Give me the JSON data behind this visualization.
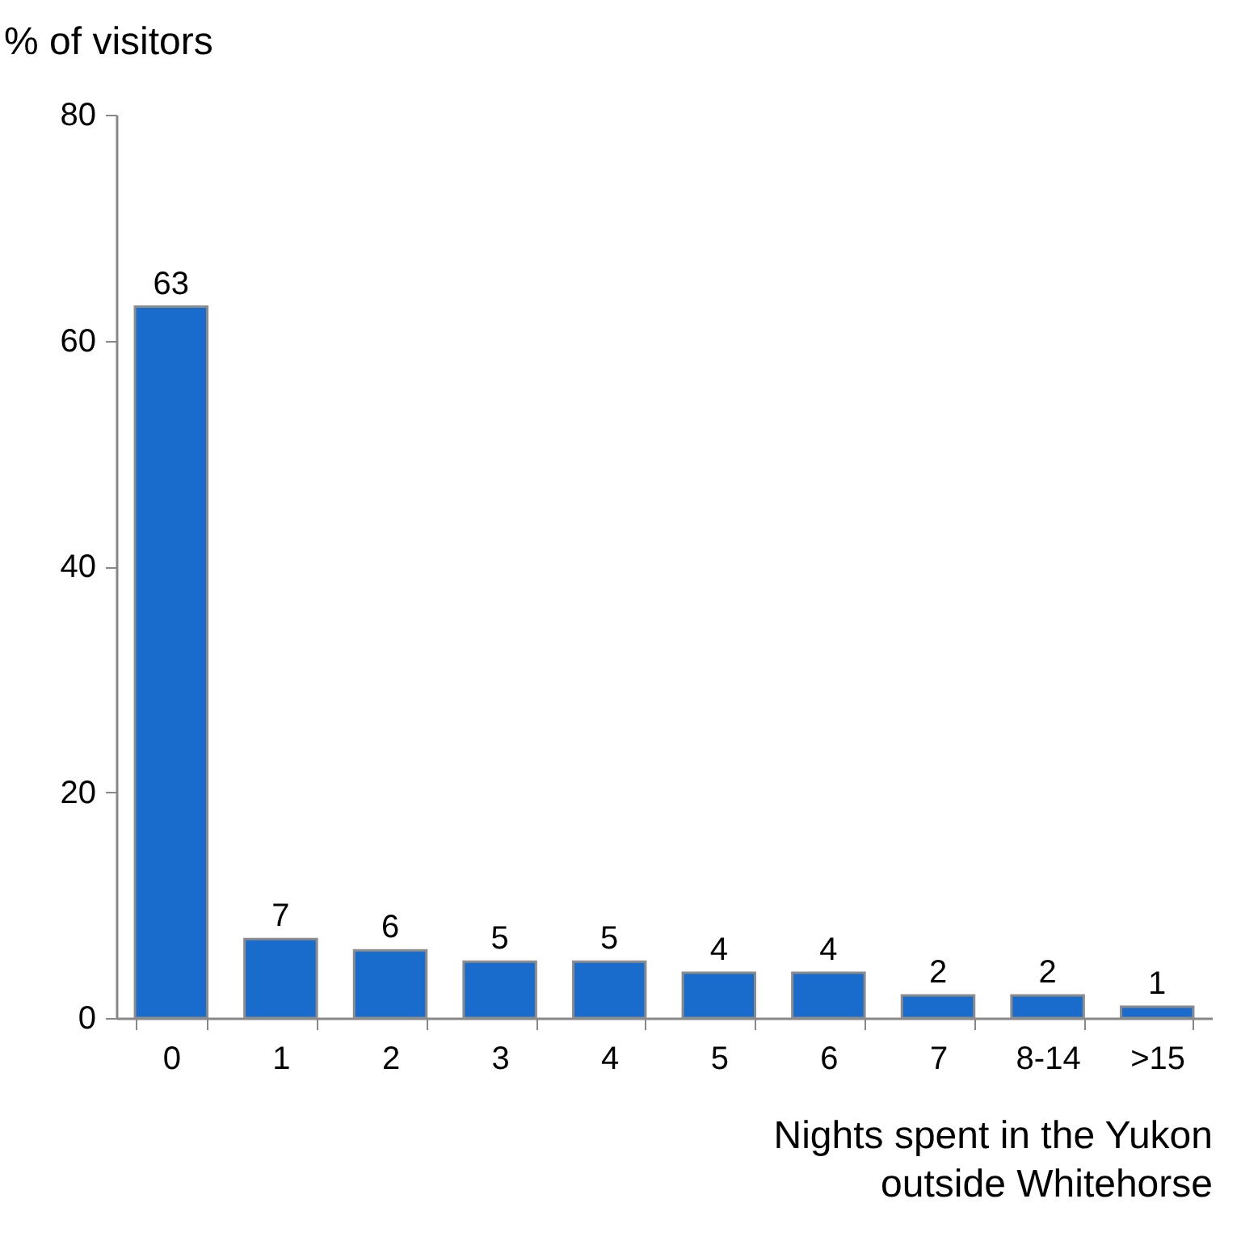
{
  "chart_data": {
    "type": "bar",
    "categories": [
      "0",
      "1",
      "2",
      "3",
      "4",
      "5",
      "6",
      "7",
      "8-14",
      ">15"
    ],
    "values": [
      63,
      7,
      6,
      5,
      5,
      4,
      4,
      2,
      2,
      1
    ],
    "color": "#1a6ccc",
    "ylabel": "% of visitors",
    "xlabel": "Nights spent in the Yukon\noutside Whitehorse",
    "ylim": [
      0,
      80
    ],
    "yticks": [
      0,
      20,
      40,
      60,
      80
    ],
    "data_labels": true,
    "grid": false
  }
}
